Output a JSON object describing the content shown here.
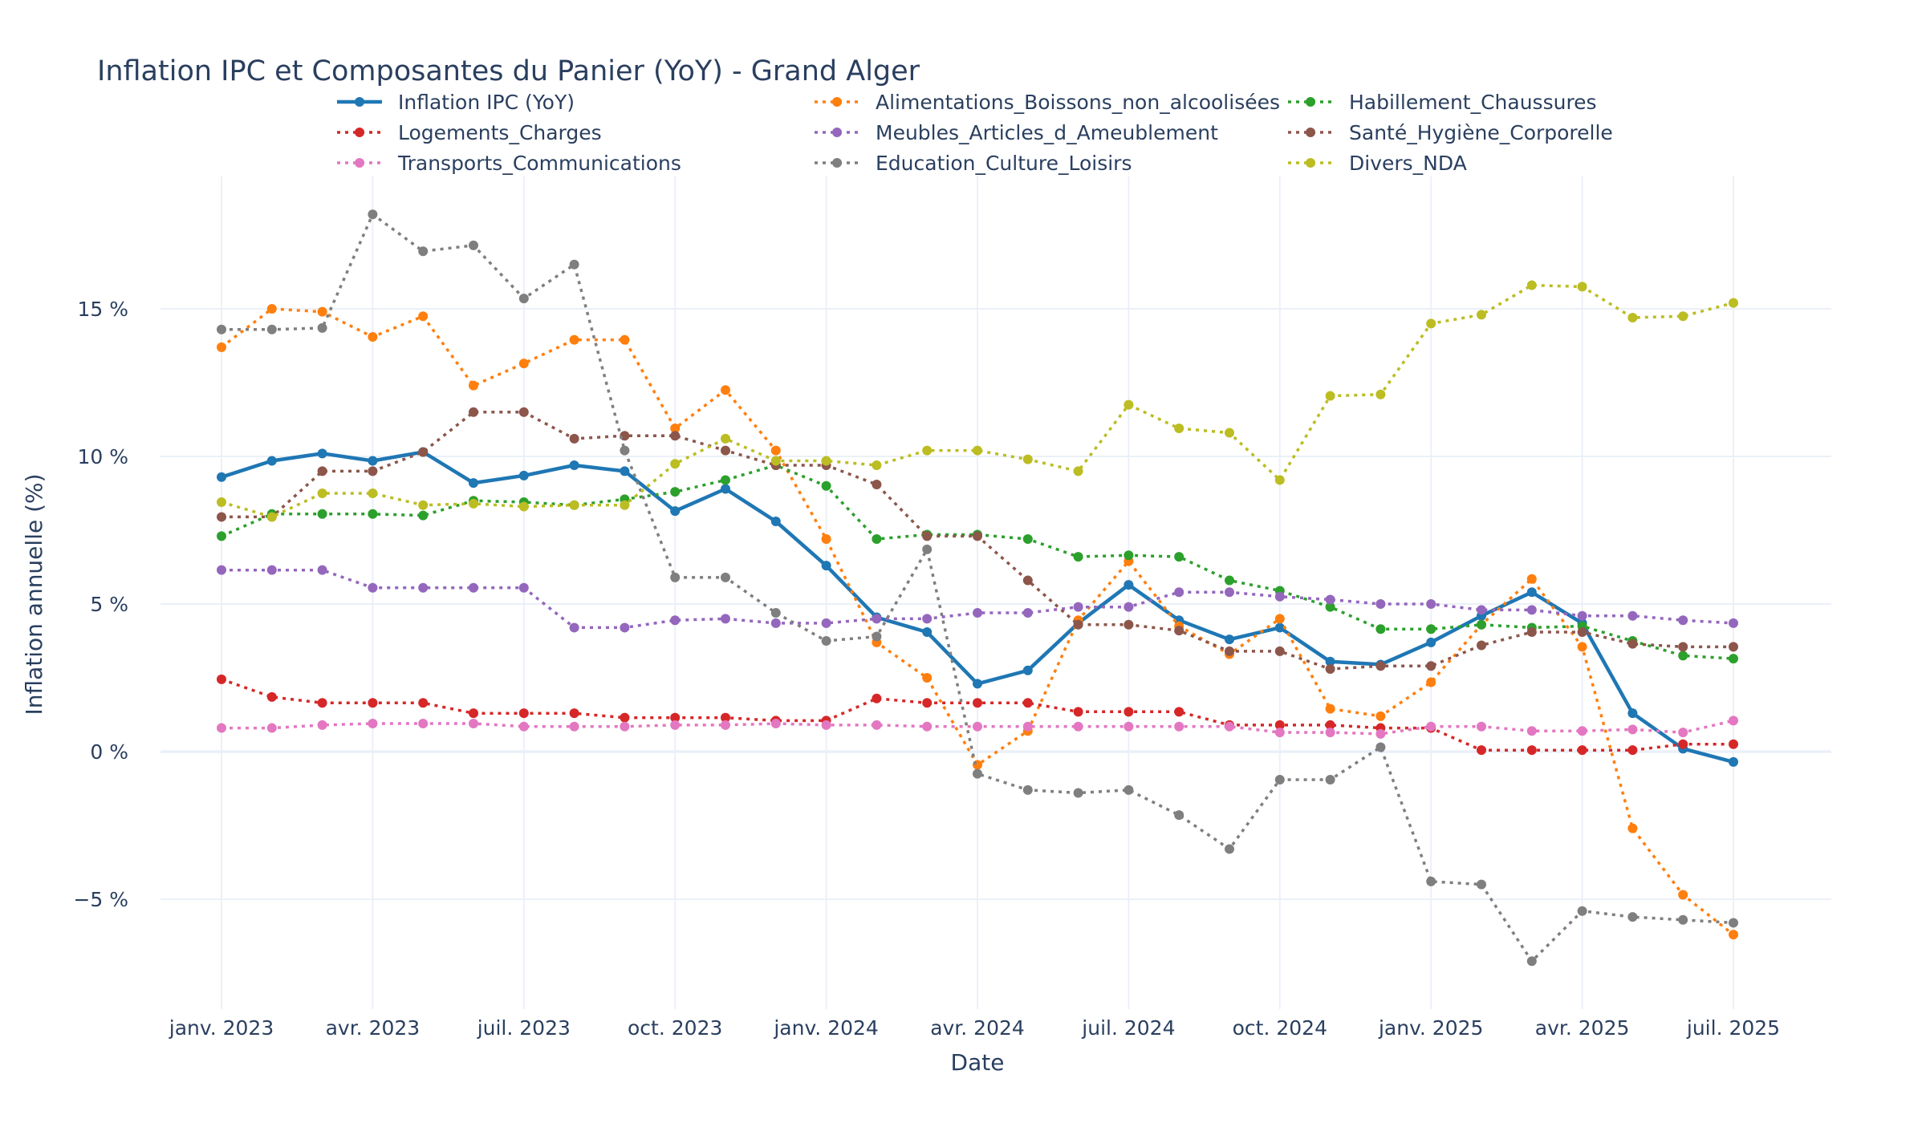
{
  "chart_data": {
    "type": "line",
    "title": "Inflation IPC et Composantes du Panier (YoY) - Grand Alger",
    "xlabel": "Date",
    "ylabel": "Inflation annuelle (%)",
    "x": [
      "2023-01",
      "2023-02",
      "2023-03",
      "2023-04",
      "2023-05",
      "2023-06",
      "2023-07",
      "2023-08",
      "2023-09",
      "2023-10",
      "2023-11",
      "2023-12",
      "2024-01",
      "2024-02",
      "2024-03",
      "2024-04",
      "2024-05",
      "2024-06",
      "2024-07",
      "2024-08",
      "2024-09",
      "2024-10",
      "2024-11",
      "2024-12",
      "2025-01",
      "2025-02",
      "2025-03",
      "2025-04",
      "2025-05",
      "2025-06",
      "2025-07"
    ],
    "x_ticks": [
      {
        "x": "2023-01",
        "label": "janv. 2023"
      },
      {
        "x": "2023-04",
        "label": "avr. 2023"
      },
      {
        "x": "2023-07",
        "label": "juil. 2023"
      },
      {
        "x": "2023-10",
        "label": "oct. 2023"
      },
      {
        "x": "2024-01",
        "label": "janv. 2024"
      },
      {
        "x": "2024-04",
        "label": "avr. 2024"
      },
      {
        "x": "2024-07",
        "label": "juil. 2024"
      },
      {
        "x": "2024-10",
        "label": "oct. 2024"
      },
      {
        "x": "2025-01",
        "label": "janv. 2025"
      },
      {
        "x": "2025-04",
        "label": "avr. 2025"
      },
      {
        "x": "2025-07",
        "label": "juil. 2025"
      }
    ],
    "y_ticks": [
      {
        "value": -5,
        "label": "−5 %"
      },
      {
        "value": 0,
        "label": "0 %"
      },
      {
        "value": 5,
        "label": "5 %"
      },
      {
        "value": 10,
        "label": "10 %"
      },
      {
        "value": 15,
        "label": "15 %"
      }
    ],
    "ylim": [
      -8.8,
      19.4
    ],
    "grid": true,
    "legend_position": "top",
    "series": [
      {
        "name": "Inflation IPC (YoY)",
        "color": "#1f77b4",
        "dash": "solid",
        "values": [
          9.3,
          9.85,
          10.1,
          9.85,
          10.15,
          9.1,
          9.35,
          9.7,
          9.5,
          8.15,
          8.9,
          7.8,
          6.3,
          4.55,
          4.05,
          2.3,
          2.75,
          4.35,
          5.65,
          4.45,
          3.8,
          4.2,
          3.05,
          2.95,
          3.7,
          4.6,
          5.4,
          4.35,
          1.3,
          0.1,
          -0.35
        ]
      },
      {
        "name": "Alimentations_Boissons_non_alcoolisées",
        "color": "#ff7f0e",
        "dash": "dot",
        "values": [
          13.7,
          15.0,
          14.9,
          14.05,
          14.75,
          12.4,
          13.15,
          13.95,
          13.95,
          10.95,
          12.25,
          10.2,
          7.2,
          3.7,
          2.5,
          -0.45,
          0.7,
          4.45,
          6.45,
          4.25,
          3.3,
          4.5,
          1.45,
          1.2,
          2.35,
          4.3,
          5.85,
          3.55,
          -2.6,
          -4.85,
          -6.2
        ]
      },
      {
        "name": "Habillement_Chaussures",
        "color": "#2ca02c",
        "dash": "dot",
        "values": [
          7.3,
          8.05,
          8.05,
          8.05,
          8.0,
          8.5,
          8.45,
          8.35,
          8.55,
          8.8,
          9.2,
          9.7,
          9.0,
          7.2,
          7.35,
          7.35,
          7.2,
          6.6,
          6.65,
          6.6,
          5.8,
          5.45,
          4.9,
          4.15,
          4.15,
          4.3,
          4.2,
          4.25,
          3.75,
          3.25,
          3.15
        ]
      },
      {
        "name": "Logements_Charges",
        "color": "#d62728",
        "dash": "dot",
        "values": [
          2.45,
          1.85,
          1.65,
          1.65,
          1.65,
          1.3,
          1.3,
          1.3,
          1.15,
          1.15,
          1.15,
          1.05,
          1.05,
          1.8,
          1.65,
          1.65,
          1.65,
          1.35,
          1.35,
          1.35,
          0.9,
          0.9,
          0.9,
          0.8,
          0.8,
          0.05,
          0.05,
          0.05,
          0.05,
          0.25,
          0.25
        ]
      },
      {
        "name": "Meubles_Articles_d_Ameublement",
        "color": "#9467bd",
        "dash": "dot",
        "values": [
          6.15,
          6.15,
          6.15,
          5.55,
          5.55,
          5.55,
          5.55,
          4.2,
          4.2,
          4.45,
          4.5,
          4.35,
          4.35,
          4.5,
          4.5,
          4.7,
          4.7,
          4.9,
          4.9,
          5.4,
          5.4,
          5.25,
          5.15,
          5.0,
          5.0,
          4.8,
          4.8,
          4.6,
          4.6,
          4.45,
          4.35
        ]
      },
      {
        "name": "Santé_Hygiène_Corporelle",
        "color": "#8c564b",
        "dash": "dot",
        "values": [
          7.95,
          7.95,
          9.5,
          9.5,
          10.15,
          11.5,
          11.5,
          10.6,
          10.7,
          10.7,
          10.2,
          9.7,
          9.7,
          9.05,
          7.3,
          7.3,
          5.8,
          4.3,
          4.3,
          4.1,
          3.4,
          3.4,
          2.8,
          2.9,
          2.9,
          3.6,
          4.05,
          4.05,
          3.65,
          3.55,
          3.55
        ]
      },
      {
        "name": "Transports_Communications",
        "color": "#e377c2",
        "dash": "dot",
        "values": [
          0.8,
          0.8,
          0.9,
          0.95,
          0.95,
          0.95,
          0.85,
          0.85,
          0.85,
          0.9,
          0.9,
          0.95,
          0.9,
          0.9,
          0.85,
          0.85,
          0.85,
          0.85,
          0.85,
          0.85,
          0.85,
          0.65,
          0.65,
          0.6,
          0.85,
          0.85,
          0.7,
          0.7,
          0.75,
          0.65,
          1.05
        ]
      },
      {
        "name": "Education_Culture_Loisirs",
        "color": "#7f7f7f",
        "dash": "dot",
        "values": [
          14.3,
          14.3,
          14.35,
          18.2,
          16.95,
          17.15,
          15.35,
          16.5,
          10.2,
          5.9,
          5.9,
          4.7,
          3.75,
          3.9,
          6.85,
          -0.75,
          -1.3,
          -1.4,
          -1.3,
          -2.15,
          -3.3,
          -0.95,
          -0.95,
          0.15,
          -4.4,
          -4.5,
          -7.1,
          -5.4,
          -5.6,
          -5.7,
          -5.8
        ]
      },
      {
        "name": "Divers_NDA",
        "color": "#bcbd22",
        "dash": "dot",
        "values": [
          8.45,
          7.95,
          8.75,
          8.75,
          8.35,
          8.4,
          8.3,
          8.35,
          8.35,
          9.75,
          10.6,
          9.85,
          9.85,
          9.7,
          10.2,
          10.2,
          9.9,
          9.5,
          11.75,
          10.95,
          10.8,
          9.2,
          12.05,
          12.1,
          14.5,
          14.8,
          15.8,
          15.75,
          14.7,
          14.75,
          15.2
        ]
      }
    ]
  }
}
